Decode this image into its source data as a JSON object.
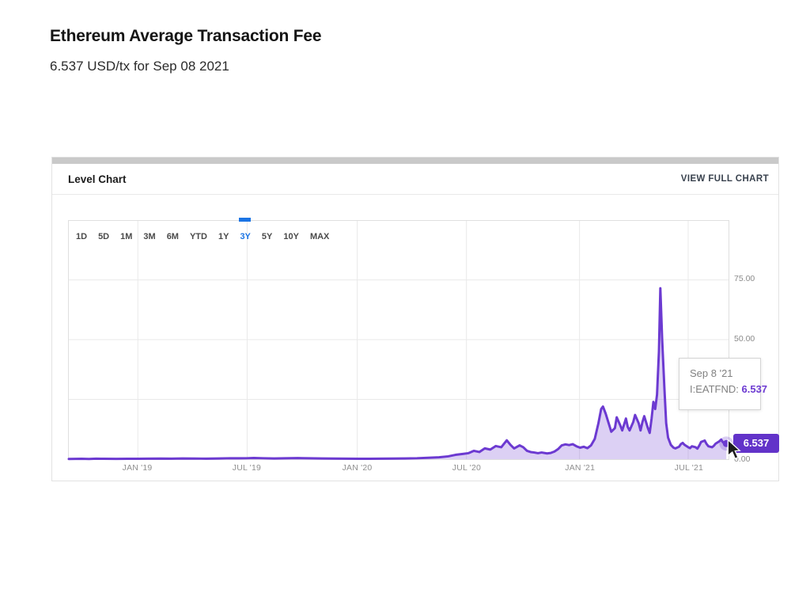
{
  "page": {
    "title": "Ethereum Average Transaction Fee",
    "subtitle": "6.537 USD/tx for Sep 08 2021"
  },
  "panel": {
    "header": "Level Chart",
    "action": "VIEW FULL CHART"
  },
  "range_selector": {
    "options": [
      "1D",
      "5D",
      "1M",
      "3M",
      "6M",
      "YTD",
      "1Y",
      "3Y",
      "5Y",
      "10Y",
      "MAX"
    ],
    "selected": "3Y"
  },
  "tooltip": {
    "date": "Sep 8 '21",
    "series_label": "I:EATFND:",
    "value": "6.537"
  },
  "value_badge": "6.537",
  "colors": {
    "line": "#6c3ad1",
    "fill": "rgba(108,58,209,0.24)",
    "badge": "#6233c9",
    "selected_range": "#1b74e4",
    "grid": "#e9e9e9",
    "axis_text": "#8a8a8a"
  },
  "chart_data": {
    "type": "area",
    "title": "Ethereum Average Transaction Fee",
    "series_name": "I:EATFND",
    "x_unit": "months since Sep 8 2018 (3Y range ending Sep 8 2021)",
    "xlim": [
      0,
      36
    ],
    "ylim": [
      0,
      100
    ],
    "grid": true,
    "x_ticks": [
      {
        "label": "JAN '19",
        "m": 3.77
      },
      {
        "label": "JUL '19",
        "m": 9.73
      },
      {
        "label": "JAN '20",
        "m": 15.74
      },
      {
        "label": "JUL '20",
        "m": 21.7
      },
      {
        "label": "JAN '21",
        "m": 27.87
      },
      {
        "label": "JUL '21",
        "m": 33.8
      }
    ],
    "y_ticks": [
      {
        "label": "75.00",
        "v": 75
      },
      {
        "label": "50.00",
        "v": 50
      },
      {
        "label": "25.00",
        "v": 25
      },
      {
        "label": "0.00",
        "v": 0
      }
    ],
    "last_point": {
      "date": "Sep 08 2021",
      "value": 6.537
    },
    "points": [
      [
        0,
        0.1
      ],
      [
        0.7,
        0.15
      ],
      [
        1.1,
        0.1
      ],
      [
        1.5,
        0.2
      ],
      [
        1.9,
        0.15
      ],
      [
        2.6,
        0.12
      ],
      [
        3.2,
        0.18
      ],
      [
        3.8,
        0.15
      ],
      [
        4.3,
        0.2
      ],
      [
        5,
        0.25
      ],
      [
        5.6,
        0.2
      ],
      [
        6.2,
        0.3
      ],
      [
        6.9,
        0.25
      ],
      [
        7.5,
        0.2
      ],
      [
        8.2,
        0.3
      ],
      [
        8.8,
        0.4
      ],
      [
        9.3,
        0.35
      ],
      [
        9.7,
        0.4
      ],
      [
        10.1,
        0.5
      ],
      [
        10.6,
        0.4
      ],
      [
        11.2,
        0.3
      ],
      [
        11.8,
        0.35
      ],
      [
        12.5,
        0.45
      ],
      [
        13.1,
        0.35
      ],
      [
        13.8,
        0.3
      ],
      [
        14.4,
        0.25
      ],
      [
        15.1,
        0.2
      ],
      [
        15.8,
        0.18
      ],
      [
        16.4,
        0.15
      ],
      [
        17,
        0.2
      ],
      [
        17.7,
        0.25
      ],
      [
        18.3,
        0.3
      ],
      [
        19,
        0.4
      ],
      [
        19.6,
        0.6
      ],
      [
        20.2,
        0.8
      ],
      [
        20.7,
        1.2
      ],
      [
        21.1,
        1.8
      ],
      [
        21.5,
        2.2
      ],
      [
        21.8,
        2.5
      ],
      [
        22.1,
        3.5
      ],
      [
        22.4,
        3
      ],
      [
        22.7,
        4.5
      ],
      [
        23,
        4
      ],
      [
        23.3,
        5.5
      ],
      [
        23.6,
        5
      ],
      [
        23.9,
        7.9
      ],
      [
        24.1,
        6
      ],
      [
        24.3,
        4.5
      ],
      [
        24.6,
        5.8
      ],
      [
        24.8,
        5
      ],
      [
        25,
        3.5
      ],
      [
        25.2,
        3
      ],
      [
        25.4,
        2.8
      ],
      [
        25.6,
        2.5
      ],
      [
        25.8,
        2.8
      ],
      [
        26.1,
        2.4
      ],
      [
        26.3,
        2.6
      ],
      [
        26.5,
        3.2
      ],
      [
        26.7,
        4.2
      ],
      [
        26.9,
        5.8
      ],
      [
        27.1,
        6.2
      ],
      [
        27.3,
        5.9
      ],
      [
        27.5,
        6.3
      ],
      [
        27.7,
        5.4
      ],
      [
        27.9,
        4.8
      ],
      [
        28.1,
        5.2
      ],
      [
        28.3,
        4.6
      ],
      [
        28.5,
        5.8
      ],
      [
        28.7,
        8.5
      ],
      [
        28.9,
        15
      ],
      [
        29.05,
        21
      ],
      [
        29.15,
        22
      ],
      [
        29.3,
        19
      ],
      [
        29.5,
        14
      ],
      [
        29.6,
        11.5
      ],
      [
        29.8,
        13
      ],
      [
        29.9,
        17.5
      ],
      [
        30.1,
        14
      ],
      [
        30.2,
        12
      ],
      [
        30.4,
        17
      ],
      [
        30.5,
        13.5
      ],
      [
        30.6,
        12
      ],
      [
        30.8,
        15.5
      ],
      [
        30.9,
        18.5
      ],
      [
        31.1,
        15
      ],
      [
        31.2,
        12
      ],
      [
        31.3,
        15.5
      ],
      [
        31.4,
        18
      ],
      [
        31.6,
        13
      ],
      [
        31.7,
        11
      ],
      [
        31.8,
        17
      ],
      [
        31.9,
        24
      ],
      [
        32,
        21
      ],
      [
        32.1,
        27
      ],
      [
        32.2,
        45
      ],
      [
        32.28,
        71.5
      ],
      [
        32.38,
        50
      ],
      [
        32.5,
        30
      ],
      [
        32.6,
        15
      ],
      [
        32.7,
        9
      ],
      [
        32.85,
        6
      ],
      [
        33,
        4.8
      ],
      [
        33.1,
        4.5
      ],
      [
        33.3,
        5.2
      ],
      [
        33.4,
        6.3
      ],
      [
        33.5,
        6.8
      ],
      [
        33.6,
        6
      ],
      [
        33.8,
        5
      ],
      [
        33.9,
        4.6
      ],
      [
        34,
        5.4
      ],
      [
        34.2,
        5
      ],
      [
        34.3,
        4.4
      ],
      [
        34.4,
        5.6
      ],
      [
        34.5,
        7.2
      ],
      [
        34.7,
        7.8
      ],
      [
        34.8,
        6.4
      ],
      [
        34.9,
        5.4
      ],
      [
        35.1,
        5
      ],
      [
        35.2,
        5.6
      ],
      [
        35.3,
        6.5
      ],
      [
        35.5,
        7.5
      ],
      [
        35.6,
        8.2
      ],
      [
        35.7,
        7
      ],
      [
        35.88,
        6.537
      ]
    ]
  }
}
